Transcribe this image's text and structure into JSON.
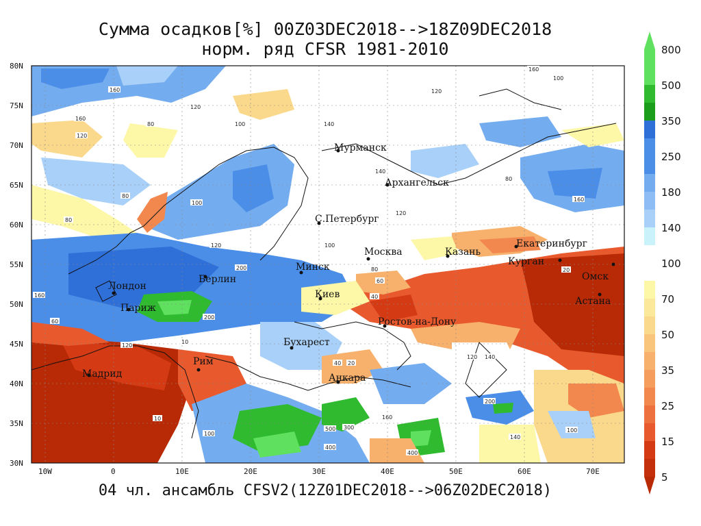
{
  "title": {
    "line1": "Сумма осадков[%] 00Z03DEC2018-->18Z09DEC2018",
    "line2": "норм. ряд CFSR 1981-2010"
  },
  "footer": "04 чл. ансамбль CFSV2(12Z01DEC2018-->06Z02DEC2018)",
  "axes": {
    "lat_ticks": [
      "80N",
      "75N",
      "70N",
      "65N",
      "60N",
      "55N",
      "50N",
      "45N",
      "40N",
      "35N",
      "30N"
    ],
    "lon_ticks": [
      "10W",
      "0",
      "10E",
      "20E",
      "30E",
      "40E",
      "50E",
      "60E",
      "70E"
    ]
  },
  "colorbar": {
    "labels": [
      "800",
      "500",
      "350",
      "250",
      "180",
      "140",
      "100",
      "70",
      "50",
      "35",
      "25",
      "15",
      "5"
    ],
    "colors": [
      "#5fe15f",
      "#2fba2f",
      "#1c9e1c",
      "#2f6fd8",
      "#4b8ee8",
      "#74acf0",
      "#a8d0f8",
      "#c9f2fb",
      "#ffffff",
      "#fdf7a8",
      "#fbd98c",
      "#f7b16c",
      "#f2884e",
      "#e85a2e",
      "#d43a14",
      "#b82a06"
    ]
  },
  "cities": [
    {
      "name": "Мурманск"
    },
    {
      "name": "Архангельск"
    },
    {
      "name": "С.Петербург"
    },
    {
      "name": "Москва"
    },
    {
      "name": "Казань"
    },
    {
      "name": "Екатеринбург"
    },
    {
      "name": "Курган"
    },
    {
      "name": "Омск"
    },
    {
      "name": "Астана"
    },
    {
      "name": "Минск"
    },
    {
      "name": "Берлин"
    },
    {
      "name": "Лондон"
    },
    {
      "name": "Париж"
    },
    {
      "name": "Киев"
    },
    {
      "name": "Ростов-на-Дону"
    },
    {
      "name": "Бухарест"
    },
    {
      "name": "Рим"
    },
    {
      "name": "Мадрид"
    },
    {
      "name": "Анкара"
    }
  ],
  "contour_labels": [
    "160",
    "140",
    "120",
    "100",
    "80",
    "60",
    "40",
    "20",
    "10",
    "200",
    "300",
    "400",
    "500"
  ]
}
